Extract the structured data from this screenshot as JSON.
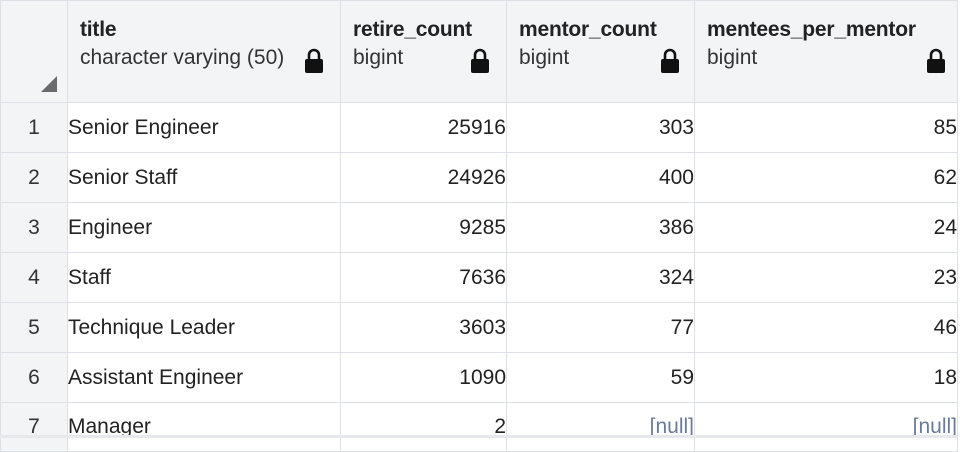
{
  "columns": [
    {
      "name": "title",
      "type": "character varying (50)"
    },
    {
      "name": "retire_count",
      "type": "bigint"
    },
    {
      "name": "mentor_count",
      "type": "bigint"
    },
    {
      "name": "mentees_per_mentor",
      "type": "bigint"
    }
  ],
  "rows": [
    {
      "num": "1",
      "title": "Senior Engineer",
      "retire_count": "25916",
      "mentor_count": "303",
      "mentees_per_mentor": "85"
    },
    {
      "num": "2",
      "title": "Senior Staff",
      "retire_count": "24926",
      "mentor_count": "400",
      "mentees_per_mentor": "62"
    },
    {
      "num": "3",
      "title": "Engineer",
      "retire_count": "9285",
      "mentor_count": "386",
      "mentees_per_mentor": "24"
    },
    {
      "num": "4",
      "title": "Staff",
      "retire_count": "7636",
      "mentor_count": "324",
      "mentees_per_mentor": "23"
    },
    {
      "num": "5",
      "title": "Technique Leader",
      "retire_count": "3603",
      "mentor_count": "77",
      "mentees_per_mentor": "46"
    },
    {
      "num": "6",
      "title": "Assistant Engineer",
      "retire_count": "1090",
      "mentor_count": "59",
      "mentees_per_mentor": "18"
    },
    {
      "num": "7",
      "title": "Manager",
      "retire_count": "2",
      "mentor_count": "[null]",
      "mentees_per_mentor": "[null]"
    }
  ],
  "colors": {
    "header_bg": "#f3f4f6",
    "null_text": "#6c7a99",
    "grid_line": "#dde0e6",
    "tab_accent": "#326690"
  },
  "icons": {
    "column_lock": "lock-icon",
    "select_all": "corner-triangle-icon"
  }
}
